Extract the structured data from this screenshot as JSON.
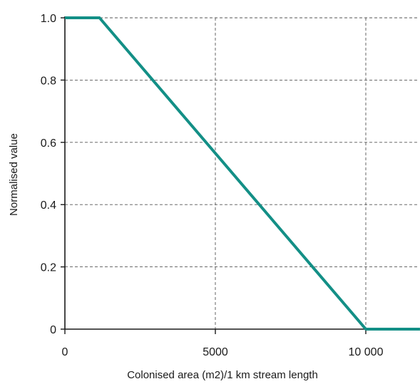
{
  "chart_data": {
    "type": "line",
    "title": "",
    "xlabel": "Colonised area (m2)/1 km stream length",
    "ylabel": "Normalised value",
    "xlim": [
      0,
      11800
    ],
    "ylim": [
      0,
      1.0
    ],
    "x_ticks": [
      {
        "value": 0,
        "label": "0"
      },
      {
        "value": 5000,
        "label": "5000"
      },
      {
        "value": 10000,
        "label": "10 000"
      }
    ],
    "y_ticks": [
      {
        "value": 0,
        "label": "0"
      },
      {
        "value": 0.2,
        "label": "0.2"
      },
      {
        "value": 0.4,
        "label": "0.4"
      },
      {
        "value": 0.6,
        "label": "0.6"
      },
      {
        "value": 0.8,
        "label": "0.8"
      },
      {
        "value": 1.0,
        "label": "1.0"
      }
    ],
    "grid": true,
    "legend": "none",
    "series": [
      {
        "color": "#138f86",
        "x": [
          0,
          1150,
          10000,
          11800
        ],
        "y": [
          1.0,
          1.0,
          0,
          0
        ]
      }
    ]
  }
}
